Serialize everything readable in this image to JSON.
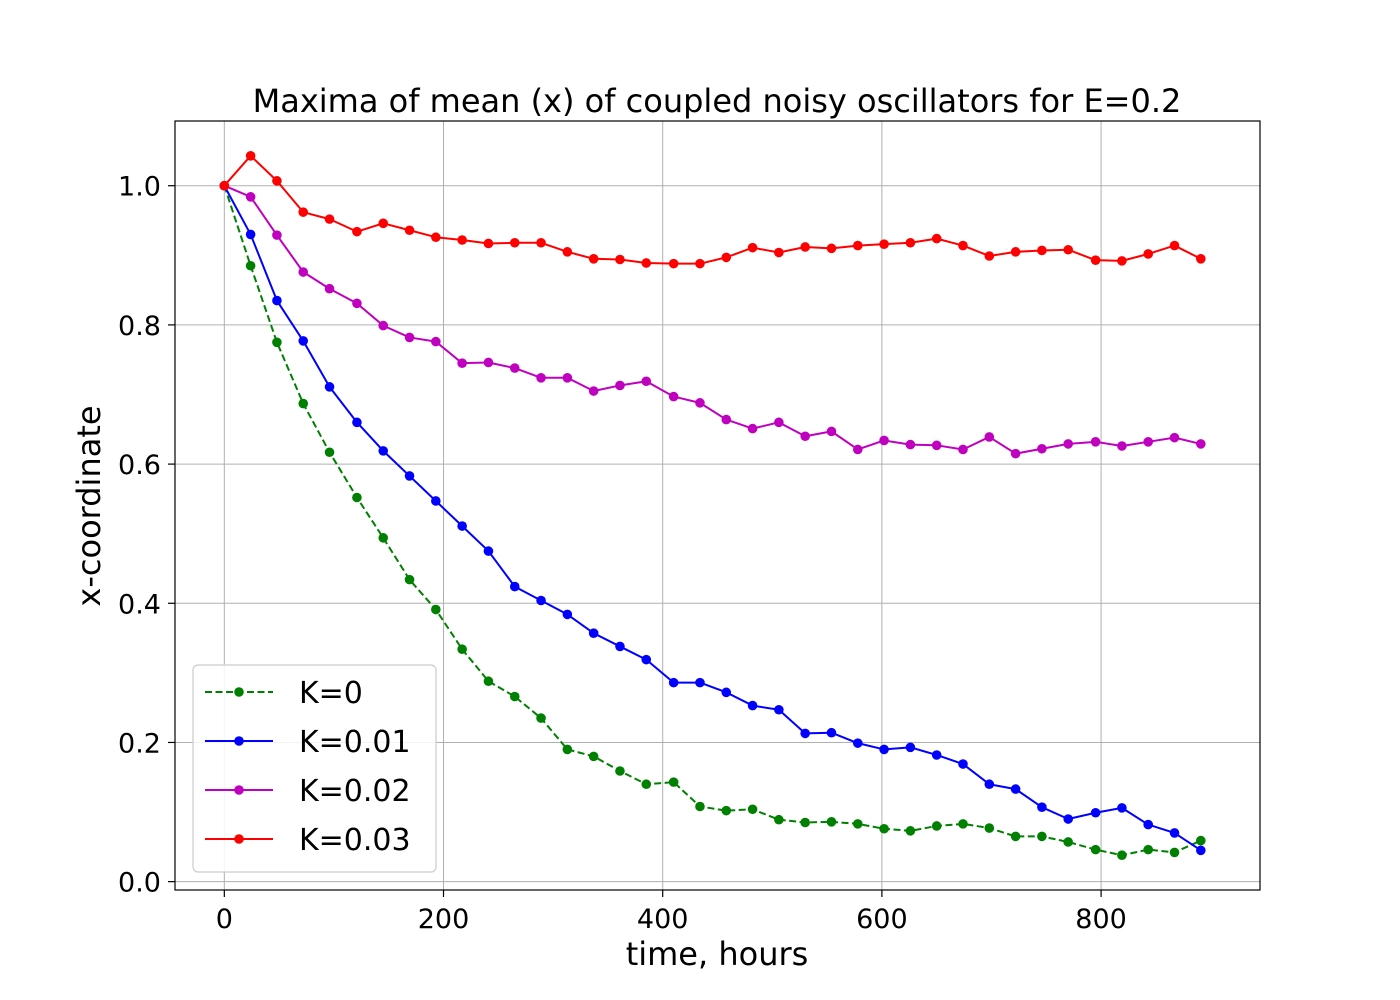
{
  "chart_data": {
    "type": "line",
    "title": "Maxima of mean (x) of coupled noisy oscillators for E=0.2",
    "xlabel": "time, hours",
    "ylabel": "x-coordinate",
    "xlim": [
      -45,
      945
    ],
    "ylim": [
      -0.012,
      1.093
    ],
    "xticks": [
      0,
      200,
      400,
      600,
      800
    ],
    "xtick_labels": [
      "0",
      "200",
      "400",
      "600",
      "800"
    ],
    "yticks": [
      0.0,
      0.2,
      0.4,
      0.6,
      0.8,
      1.0
    ],
    "ytick_labels": [
      "0.0",
      "0.2",
      "0.4",
      "0.6",
      "0.8",
      "1.0"
    ],
    "grid": true,
    "legend_position": "lower-left",
    "x": [
      0,
      24,
      48,
      72,
      96,
      121,
      145,
      169,
      193,
      217,
      241,
      265,
      289,
      313,
      337,
      361,
      385,
      410,
      434,
      458,
      482,
      506,
      530,
      554,
      578,
      602,
      626,
      650,
      674,
      698,
      722,
      746,
      770,
      795,
      819,
      843,
      867,
      891
    ],
    "series": [
      {
        "name": "K=0",
        "color": "#008000",
        "dashed": true,
        "values": [
          1.0,
          0.885,
          0.775,
          0.687,
          0.617,
          0.552,
          0.494,
          0.434,
          0.391,
          0.334,
          0.288,
          0.266,
          0.235,
          0.19,
          0.18,
          0.159,
          0.14,
          0.143,
          0.108,
          0.102,
          0.104,
          0.089,
          0.085,
          0.086,
          0.083,
          0.076,
          0.073,
          0.08,
          0.083,
          0.077,
          0.065,
          0.065,
          0.057,
          0.046,
          0.038,
          0.046,
          0.042,
          0.059
        ]
      },
      {
        "name": "K=0.01",
        "color": "#0000ff",
        "dashed": false,
        "values": [
          1.0,
          0.93,
          0.835,
          0.777,
          0.711,
          0.66,
          0.619,
          0.583,
          0.547,
          0.511,
          0.475,
          0.424,
          0.404,
          0.384,
          0.357,
          0.338,
          0.319,
          0.286,
          0.286,
          0.272,
          0.253,
          0.247,
          0.213,
          0.214,
          0.199,
          0.19,
          0.193,
          0.182,
          0.169,
          0.14,
          0.133,
          0.107,
          0.09,
          0.099,
          0.106,
          0.082,
          0.07,
          0.045
        ]
      },
      {
        "name": "K=0.02",
        "color": "#bf00bf",
        "dashed": false,
        "values": [
          1.0,
          0.984,
          0.929,
          0.876,
          0.852,
          0.831,
          0.799,
          0.782,
          0.776,
          0.745,
          0.746,
          0.738,
          0.724,
          0.724,
          0.705,
          0.713,
          0.719,
          0.697,
          0.688,
          0.664,
          0.651,
          0.66,
          0.64,
          0.647,
          0.621,
          0.634,
          0.628,
          0.627,
          0.621,
          0.639,
          0.615,
          0.622,
          0.629,
          0.632,
          0.626,
          0.632,
          0.638,
          0.629
        ]
      },
      {
        "name": "K=0.03",
        "color": "#ff0000",
        "dashed": false,
        "values": [
          1.0,
          1.043,
          1.007,
          0.962,
          0.952,
          0.934,
          0.946,
          0.936,
          0.926,
          0.922,
          0.917,
          0.918,
          0.918,
          0.905,
          0.895,
          0.894,
          0.889,
          0.888,
          0.888,
          0.897,
          0.911,
          0.904,
          0.912,
          0.91,
          0.914,
          0.916,
          0.918,
          0.924,
          0.914,
          0.899,
          0.905,
          0.907,
          0.908,
          0.893,
          0.892,
          0.902,
          0.914,
          0.895
        ]
      }
    ]
  }
}
